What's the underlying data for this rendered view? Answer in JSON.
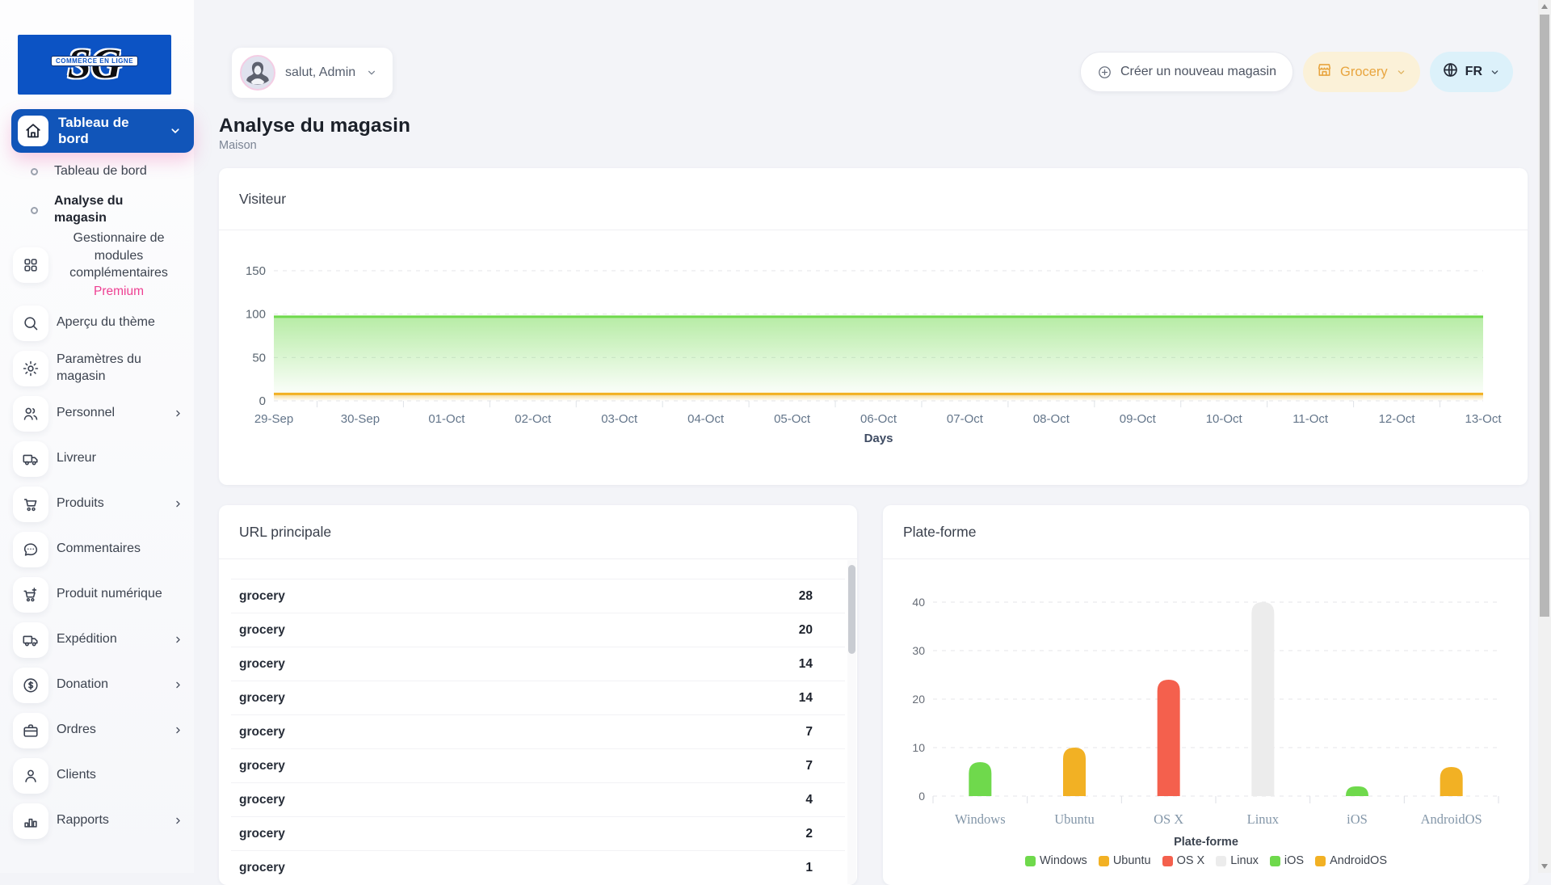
{
  "app": {
    "logo_monogram": "SG",
    "logo_banner": "COMMERCE EN LIGNE"
  },
  "colors": {
    "accent_blue": "#1155b9",
    "logo_blue": "#0c53c4",
    "premium_pink": "#ee3f92",
    "store_pill_bg": "#fbf1d8",
    "store_pill_text": "#e8a53f",
    "lang_pill_bg": "#dcf1fa",
    "chart_green": "#6fd94c",
    "chart_yellow": "#f2b124",
    "chart_red": "#f4604d",
    "chart_gray": "#ececec"
  },
  "sidebar": {
    "active": {
      "label": "Tableau de bord",
      "icon": "home"
    },
    "items": [
      {
        "id": "tableau-de-bord",
        "label": "Tableau de bord",
        "style": "sub"
      },
      {
        "id": "analyse-du-magasin",
        "label": "Analyse du magasin",
        "style": "sub-active"
      },
      {
        "id": "gestionnaire-de-modules-complementaires",
        "label": "Gestionnaire de modules complémentaires",
        "badge": "Premium",
        "icon": "grid",
        "style": "block"
      },
      {
        "id": "apercu-du-theme",
        "label": "Aperçu du thème",
        "icon": "search"
      },
      {
        "id": "parametres-du-magasin",
        "label": "Paramètres du magasin",
        "icon": "gear"
      },
      {
        "id": "personnel",
        "label": "Personnel",
        "icon": "users",
        "chevron": true
      },
      {
        "id": "livreur",
        "label": "Livreur",
        "icon": "truck"
      },
      {
        "id": "produits",
        "label": "Produits",
        "icon": "cart",
        "chevron": true
      },
      {
        "id": "commentaires",
        "label": "Commentaires",
        "icon": "chat"
      },
      {
        "id": "produit-numerique",
        "label": "Produit numérique",
        "icon": "cart-plus"
      },
      {
        "id": "expedition",
        "label": "Expédition",
        "icon": "truck",
        "chevron": true
      },
      {
        "id": "donation",
        "label": "Donation",
        "icon": "dollar",
        "chevron": true
      },
      {
        "id": "ordres",
        "label": "Ordres",
        "icon": "briefcase",
        "chevron": true
      },
      {
        "id": "clients",
        "label": "Clients",
        "icon": "person"
      },
      {
        "id": "rapports",
        "label": "Rapports",
        "icon": "chart",
        "chevron": true
      }
    ]
  },
  "header": {
    "greeting": "salut, Admin",
    "create_button": "Créer un nouveau magasin",
    "store_selector": "Grocery",
    "language": "FR"
  },
  "page": {
    "title": "Analyse du magasin",
    "subtitle": "Maison"
  },
  "visitor_card": {
    "title": "Visiteur"
  },
  "url_card": {
    "title": "URL principale",
    "rows": [
      {
        "label": "grocery",
        "value": 28
      },
      {
        "label": "grocery",
        "value": 20
      },
      {
        "label": "grocery",
        "value": 14
      },
      {
        "label": "grocery",
        "value": 14
      },
      {
        "label": "grocery",
        "value": 7
      },
      {
        "label": "grocery",
        "value": 7
      },
      {
        "label": "grocery",
        "value": 4
      },
      {
        "label": "grocery",
        "value": 2
      },
      {
        "label": "grocery",
        "value": 1
      }
    ]
  },
  "platform_card": {
    "title": "Plate-forme"
  },
  "chart_data": [
    {
      "type": "area",
      "title": "Visiteur",
      "xlabel": "Days",
      "ylabel": "",
      "x": [
        "29-Sep",
        "30-Sep",
        "01-Oct",
        "02-Oct",
        "03-Oct",
        "04-Oct",
        "05-Oct",
        "06-Oct",
        "07-Oct",
        "08-Oct",
        "09-Oct",
        "10-Oct",
        "11-Oct",
        "12-Oct",
        "13-Oct"
      ],
      "ylim": [
        0,
        150
      ],
      "yticks": [
        150,
        100,
        50,
        0
      ],
      "grid": true,
      "series": [
        {
          "name": "series-1",
          "color": "#6fd94c",
          "values": [
            97,
            97,
            97,
            97,
            97,
            97,
            97,
            97,
            97,
            97,
            97,
            97,
            97,
            97,
            97
          ]
        },
        {
          "name": "series-2",
          "color": "#f2b124",
          "values": [
            8,
            8,
            8,
            8,
            8,
            8,
            8,
            8,
            8,
            8,
            8,
            8,
            8,
            8,
            8
          ]
        }
      ]
    },
    {
      "type": "bar",
      "title": "Plate-forme",
      "legend_title": "Plate-forme",
      "legend_position": "bottom",
      "categories": [
        "Windows",
        "Ubuntu",
        "OS X",
        "Linux",
        "iOS",
        "AndroidOS"
      ],
      "values": [
        7,
        10,
        24,
        40,
        2,
        6
      ],
      "colors": [
        "#6fd94c",
        "#f2b124",
        "#f4604d",
        "#ececec",
        "#6fd94c",
        "#f2b124"
      ],
      "ylim": [
        0,
        40
      ],
      "yticks": [
        40,
        30,
        20,
        10,
        0
      ],
      "grid": true
    }
  ]
}
